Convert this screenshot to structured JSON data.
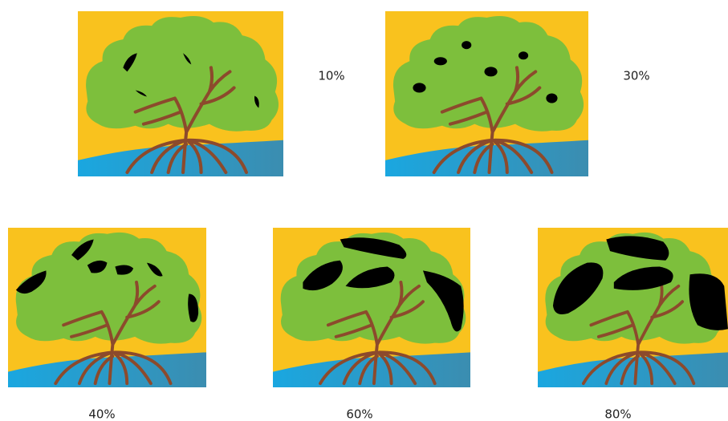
{
  "panels": [
    {
      "label": "10%"
    },
    {
      "label": "30%"
    },
    {
      "label": "40%"
    },
    {
      "label": "60%"
    },
    {
      "label": "80%"
    }
  ]
}
